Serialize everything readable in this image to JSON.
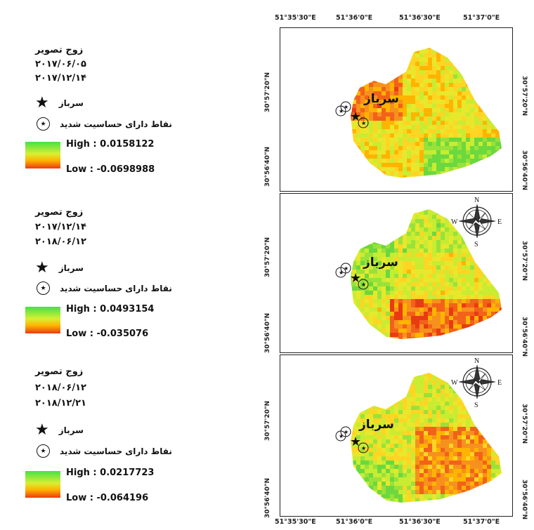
{
  "panels": [
    {
      "pair_title": "زوج تصویر",
      "date1": "۲۰۱۷/۰۶/۰۵",
      "date2": "۲۰۱۷/۱۲/۱۴",
      "star_label": "سرباز",
      "circle_label": "نقاط دارای حساسیت شدید",
      "high_label": "High : 0.0158122",
      "low_label": "Low : -0.0698988",
      "place_label": "سرباز",
      "lat_upper": "30°57'20\"N",
      "lat_lower": "30°56'40\"N"
    },
    {
      "pair_title": "زوج تصویر",
      "date1": "۲۰۱۷/۱۲/۱۴",
      "date2": "۲۰۱۸/۰۶/۱۲",
      "star_label": "سرباز",
      "circle_label": "نقاط دارای حساسیت شدید",
      "high_label": "High : 0.0493154",
      "low_label": "Low : -0.035076",
      "place_label": "سرباز",
      "lat_upper": "30°57'20\"N",
      "lat_lower": "30°56'40\"N"
    },
    {
      "pair_title": "زوج تصویر",
      "date1": "۲۰۱۸/۰۶/۱۲",
      "date2": "۲۰۱۸/۱۲/۲۱",
      "star_label": "سرباز",
      "circle_label": "نقاط دارای حساسیت شدید",
      "high_label": "High : 0.0217723",
      "low_label": "Low : -0.064196",
      "place_label": "سرباز",
      "lat_upper": "30°57'20\"N",
      "lat_lower": "30°56'40\"N"
    }
  ],
  "longitude_labels": [
    "51°35'30\"E",
    "51°36'0\"E",
    "51°36'30\"E",
    "51°37'0\"E"
  ],
  "compass": {
    "n": "N",
    "s": "S",
    "e": "E",
    "w": "W"
  },
  "colors": {
    "high": "#44e244",
    "mid": "#d8ef34",
    "orange": "#ffb400",
    "low": "#e93b12"
  },
  "icons": {
    "star": "star-icon",
    "circle": "circled-star-icon"
  }
}
